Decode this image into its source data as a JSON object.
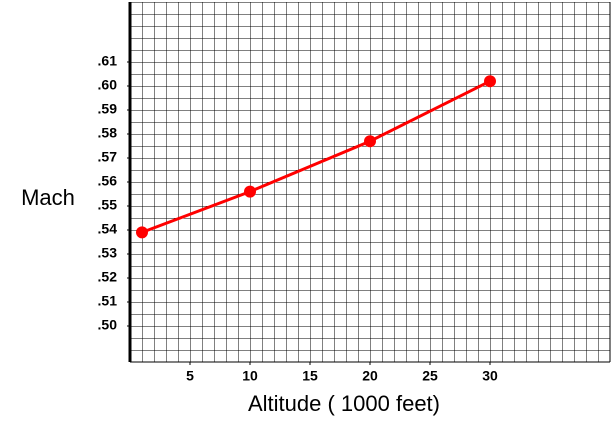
{
  "chart_data": {
    "type": "line",
    "xlabel": "Altitude ( 1000 feet)",
    "ylabel": "Mach",
    "x": [
      1,
      10,
      20,
      30
    ],
    "series": [
      {
        "color": "#ff0000",
        "values": [
          0.539,
          0.556,
          0.577,
          0.602
        ]
      }
    ],
    "xlim": [
      0,
      40
    ],
    "ylim": [
      0.485,
      0.635
    ],
    "xticks": [
      5,
      10,
      15,
      20,
      25,
      30
    ],
    "yticks": [
      {
        "value": 0.5,
        "label": ".50"
      },
      {
        "value": 0.51,
        "label": ".51"
      },
      {
        "value": 0.52,
        "label": ".52"
      },
      {
        "value": 0.53,
        "label": ".53"
      },
      {
        "value": 0.54,
        "label": ".54"
      },
      {
        "value": 0.55,
        "label": ".55"
      },
      {
        "value": 0.56,
        "label": ".56"
      },
      {
        "value": 0.57,
        "label": ".57"
      },
      {
        "value": 0.58,
        "label": ".58"
      },
      {
        "value": 0.59,
        "label": ".59"
      },
      {
        "value": 0.6,
        "label": ".60"
      },
      {
        "value": 0.61,
        "label": ".61"
      }
    ],
    "grid": true
  }
}
